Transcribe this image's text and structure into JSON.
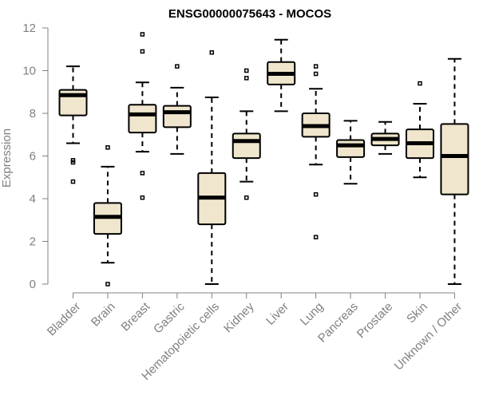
{
  "chart_data": {
    "type": "boxplot",
    "title": "ENSG00000075643 - MOCOS",
    "xlabel": "",
    "ylabel": "Expression",
    "ylim": [
      0,
      12
    ],
    "yticks": [
      0,
      2,
      4,
      6,
      8,
      10,
      12
    ],
    "categories": [
      "Bladder",
      "Brain",
      "Breast",
      "Gastric",
      "Hematopoietic cells",
      "Kidney",
      "Liver",
      "Lung",
      "Pancreas",
      "Prostate",
      "Skin",
      "Unknown / Other"
    ],
    "boxes": [
      {
        "category": "Bladder",
        "whisker_low": 6.6,
        "q1": 7.9,
        "median": 8.85,
        "q3": 9.1,
        "whisker_high": 10.2,
        "outliers": [
          5.8,
          5.7,
          4.8
        ]
      },
      {
        "category": "Brain",
        "whisker_low": 1.0,
        "q1": 2.35,
        "median": 3.15,
        "q3": 3.8,
        "whisker_high": 5.5,
        "outliers": [
          6.4,
          0.0
        ]
      },
      {
        "category": "Breast",
        "whisker_low": 6.2,
        "q1": 7.1,
        "median": 7.95,
        "q3": 8.4,
        "whisker_high": 9.45,
        "outliers": [
          11.7,
          10.9,
          5.2,
          4.05
        ]
      },
      {
        "category": "Gastric",
        "whisker_low": 6.1,
        "q1": 7.35,
        "median": 8.05,
        "q3": 8.35,
        "whisker_high": 9.2,
        "outliers": [
          10.2
        ]
      },
      {
        "category": "Hematopoietic cells",
        "whisker_low": 0.0,
        "q1": 2.8,
        "median": 4.05,
        "q3": 5.2,
        "whisker_high": 8.75,
        "outliers": [
          10.85
        ]
      },
      {
        "category": "Kidney",
        "whisker_low": 4.8,
        "q1": 5.9,
        "median": 6.7,
        "q3": 7.05,
        "whisker_high": 8.1,
        "outliers": [
          10.0,
          9.65,
          4.05
        ]
      },
      {
        "category": "Liver",
        "whisker_low": 8.1,
        "q1": 9.35,
        "median": 9.85,
        "q3": 10.4,
        "whisker_high": 11.45,
        "outliers": []
      },
      {
        "category": "Lung",
        "whisker_low": 5.6,
        "q1": 6.9,
        "median": 7.4,
        "q3": 8.0,
        "whisker_high": 9.15,
        "outliers": [
          10.2,
          9.85,
          4.2,
          2.2
        ]
      },
      {
        "category": "Pancreas",
        "whisker_low": 4.7,
        "q1": 5.95,
        "median": 6.5,
        "q3": 6.75,
        "whisker_high": 7.65,
        "outliers": []
      },
      {
        "category": "Prostate",
        "whisker_low": 6.1,
        "q1": 6.5,
        "median": 6.8,
        "q3": 7.05,
        "whisker_high": 7.6,
        "outliers": []
      },
      {
        "category": "Skin",
        "whisker_low": 5.0,
        "q1": 5.9,
        "median": 6.6,
        "q3": 7.25,
        "whisker_high": 8.45,
        "outliers": [
          9.4
        ]
      },
      {
        "category": "Unknown / Other",
        "whisker_low": 0.0,
        "q1": 4.2,
        "median": 6.0,
        "q3": 7.5,
        "whisker_high": 10.55,
        "outliers": []
      }
    ],
    "colors": {
      "box_fill": "#efe6cd",
      "stroke": "#000000",
      "axis": "#808080",
      "title": "#000000"
    },
    "grid": false,
    "legend": "none"
  }
}
